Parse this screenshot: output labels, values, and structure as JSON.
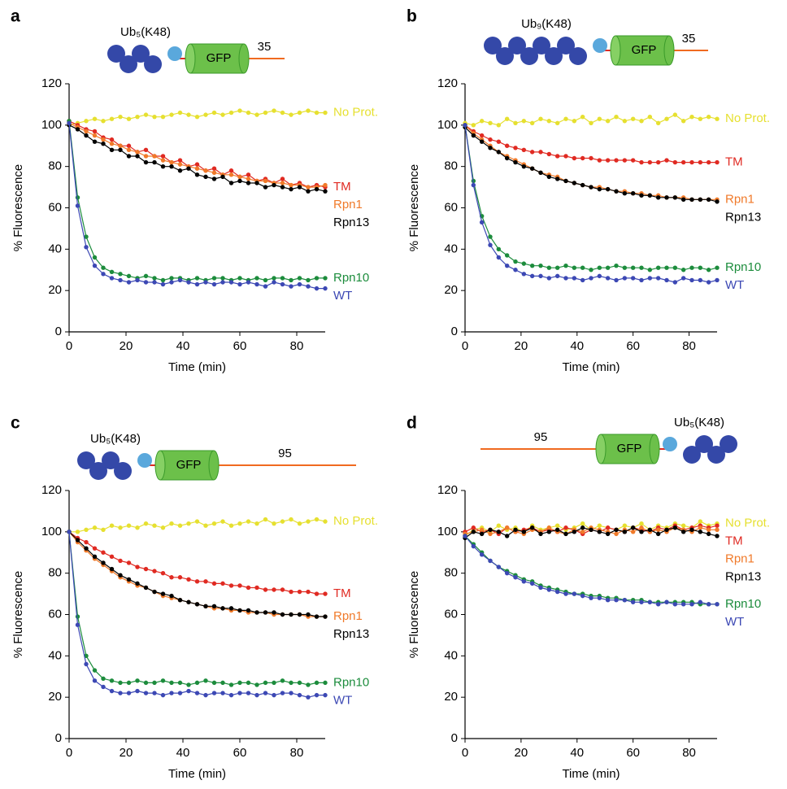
{
  "chart_data": [
    {
      "type": "scatter",
      "panel": "a",
      "construct": {
        "ubiquitin": "Ub₅(K48)",
        "gfp": "GFP",
        "tail": "35"
      },
      "x_label": "Time (min)",
      "y_label": "% Fluorescence",
      "xlim": [
        0,
        90
      ],
      "xticks": [
        0,
        20,
        40,
        60,
        80
      ],
      "ylim": [
        0,
        120
      ],
      "yticks": [
        0,
        20,
        40,
        60,
        80,
        100,
        120
      ],
      "x": [
        0,
        3,
        6,
        9,
        12,
        15,
        18,
        21,
        24,
        27,
        30,
        33,
        36,
        39,
        42,
        45,
        48,
        51,
        54,
        57,
        60,
        63,
        66,
        69,
        72,
        75,
        78,
        81,
        84,
        87,
        90
      ],
      "series": [
        {
          "name": "No Prot.",
          "color": "#e6e030",
          "values": [
            100,
            101,
            102,
            103,
            102,
            103,
            104,
            103,
            104,
            105,
            104,
            104,
            105,
            106,
            105,
            104,
            105,
            106,
            105,
            106,
            107,
            106,
            105,
            106,
            107,
            106,
            105,
            106,
            107,
            106,
            106
          ]
        },
        {
          "name": "TM",
          "color": "#e02a22",
          "values": [
            102,
            100,
            98,
            97,
            94,
            93,
            90,
            90,
            87,
            88,
            85,
            85,
            82,
            83,
            80,
            81,
            78,
            79,
            76,
            78,
            75,
            76,
            73,
            74,
            72,
            74,
            71,
            72,
            70,
            71,
            70
          ]
        },
        {
          "name": "Rpn1",
          "color": "#f07a2a",
          "values": [
            101,
            99,
            97,
            95,
            93,
            91,
            90,
            88,
            87,
            85,
            85,
            83,
            82,
            81,
            80,
            79,
            78,
            77,
            76,
            76,
            75,
            74,
            73,
            73,
            72,
            72,
            71,
            71,
            70,
            70,
            71
          ]
        },
        {
          "name": "Rpn13",
          "color": "#000000",
          "values": [
            100,
            98,
            95,
            92,
            91,
            88,
            88,
            85,
            85,
            82,
            82,
            80,
            80,
            78,
            79,
            76,
            75,
            74,
            75,
            72,
            73,
            72,
            72,
            70,
            71,
            70,
            69,
            70,
            68,
            69,
            68
          ]
        },
        {
          "name": "Rpn10",
          "color": "#1c8c3c",
          "values": [
            102,
            65,
            46,
            36,
            31,
            29,
            28,
            27,
            26,
            27,
            26,
            25,
            26,
            26,
            25,
            26,
            25,
            26,
            26,
            25,
            26,
            25,
            26,
            25,
            26,
            26,
            25,
            26,
            25,
            26,
            26
          ]
        },
        {
          "name": "WT",
          "color": "#3c48b4",
          "values": [
            101,
            61,
            41,
            32,
            28,
            26,
            25,
            24,
            25,
            24,
            24,
            23,
            24,
            25,
            24,
            23,
            24,
            23,
            24,
            24,
            23,
            24,
            23,
            22,
            24,
            23,
            22,
            23,
            22,
            21,
            21
          ]
        }
      ]
    },
    {
      "type": "scatter",
      "panel": "b",
      "construct": {
        "ubiquitin": "Ub₉(K48)",
        "gfp": "GFP",
        "tail": "35"
      },
      "x_label": "Time (min)",
      "y_label": "% Fluorescence",
      "xlim": [
        0,
        90
      ],
      "xticks": [
        0,
        20,
        40,
        60,
        80
      ],
      "ylim": [
        0,
        120
      ],
      "yticks": [
        0,
        20,
        40,
        60,
        80,
        100,
        120
      ],
      "x": [
        0,
        3,
        6,
        9,
        12,
        15,
        18,
        21,
        24,
        27,
        30,
        33,
        36,
        39,
        42,
        45,
        48,
        51,
        54,
        57,
        60,
        63,
        66,
        69,
        72,
        75,
        78,
        81,
        84,
        87,
        90
      ],
      "series": [
        {
          "name": "No Prot.",
          "color": "#e6e030",
          "values": [
            101,
            100,
            102,
            101,
            100,
            103,
            101,
            102,
            101,
            103,
            102,
            101,
            103,
            102,
            104,
            101,
            103,
            102,
            104,
            102,
            103,
            102,
            104,
            101,
            103,
            105,
            102,
            104,
            103,
            104,
            103
          ]
        },
        {
          "name": "TM",
          "color": "#e02a22",
          "values": [
            100,
            97,
            95,
            93,
            92,
            90,
            89,
            88,
            87,
            87,
            86,
            85,
            85,
            84,
            84,
            84,
            83,
            83,
            83,
            83,
            83,
            82,
            82,
            82,
            83,
            82,
            82,
            82,
            82,
            82,
            82
          ]
        },
        {
          "name": "Rpn1",
          "color": "#f07a2a",
          "values": [
            100,
            96,
            93,
            90,
            87,
            85,
            83,
            81,
            79,
            77,
            76,
            75,
            73,
            72,
            71,
            70,
            70,
            69,
            68,
            68,
            67,
            67,
            66,
            66,
            65,
            65,
            65,
            64,
            64,
            64,
            64
          ]
        },
        {
          "name": "Rpn13",
          "color": "#000000",
          "values": [
            99,
            95,
            92,
            89,
            87,
            84,
            82,
            80,
            79,
            77,
            75,
            74,
            73,
            72,
            71,
            70,
            69,
            69,
            68,
            67,
            67,
            66,
            66,
            65,
            65,
            65,
            64,
            64,
            64,
            64,
            63
          ]
        },
        {
          "name": "Rpn10",
          "color": "#1c8c3c",
          "values": [
            100,
            73,
            56,
            46,
            40,
            37,
            34,
            33,
            32,
            32,
            31,
            31,
            32,
            31,
            31,
            30,
            31,
            31,
            32,
            31,
            31,
            31,
            30,
            31,
            31,
            31,
            30,
            31,
            31,
            30,
            31
          ]
        },
        {
          "name": "WT",
          "color": "#3c48b4",
          "values": [
            100,
            71,
            53,
            42,
            36,
            32,
            30,
            28,
            27,
            27,
            26,
            27,
            26,
            26,
            25,
            26,
            27,
            26,
            25,
            26,
            26,
            25,
            26,
            26,
            25,
            24,
            26,
            25,
            25,
            24,
            25
          ]
        }
      ]
    },
    {
      "type": "scatter",
      "panel": "c",
      "construct": {
        "ubiquitin": "Ub₅(K48)",
        "gfp": "GFP",
        "tail": "95"
      },
      "x_label": "Time (min)",
      "y_label": "% Fluorescence",
      "xlim": [
        0,
        90
      ],
      "xticks": [
        0,
        20,
        40,
        60,
        80
      ],
      "ylim": [
        0,
        120
      ],
      "yticks": [
        0,
        20,
        40,
        60,
        80,
        100,
        120
      ],
      "x": [
        0,
        3,
        6,
        9,
        12,
        15,
        18,
        21,
        24,
        27,
        30,
        33,
        36,
        39,
        42,
        45,
        48,
        51,
        54,
        57,
        60,
        63,
        66,
        69,
        72,
        75,
        78,
        81,
        84,
        87,
        90
      ],
      "series": [
        {
          "name": "No Prot.",
          "color": "#e6e030",
          "values": [
            100,
            100,
            101,
            102,
            101,
            103,
            102,
            103,
            102,
            104,
            103,
            102,
            104,
            103,
            104,
            105,
            103,
            104,
            105,
            103,
            104,
            105,
            104,
            106,
            104,
            105,
            106,
            104,
            105,
            106,
            105
          ]
        },
        {
          "name": "TM",
          "color": "#e02a22",
          "values": [
            100,
            97,
            95,
            92,
            90,
            88,
            86,
            85,
            83,
            82,
            81,
            80,
            78,
            78,
            77,
            76,
            76,
            75,
            75,
            74,
            74,
            73,
            73,
            72,
            72,
            72,
            71,
            71,
            71,
            70,
            70
          ]
        },
        {
          "name": "Rpn1",
          "color": "#f07a2a",
          "values": [
            100,
            95,
            91,
            87,
            84,
            81,
            78,
            76,
            74,
            73,
            71,
            69,
            68,
            67,
            66,
            65,
            64,
            63,
            63,
            62,
            62,
            61,
            61,
            61,
            60,
            60,
            60,
            60,
            59,
            59,
            59
          ]
        },
        {
          "name": "Rpn13",
          "color": "#000000",
          "values": [
            100,
            96,
            92,
            88,
            85,
            82,
            79,
            77,
            75,
            73,
            71,
            70,
            69,
            67,
            66,
            65,
            64,
            64,
            63,
            63,
            62,
            62,
            61,
            61,
            61,
            60,
            60,
            60,
            60,
            59,
            59
          ]
        },
        {
          "name": "Rpn10",
          "color": "#1c8c3c",
          "values": [
            100,
            59,
            40,
            33,
            29,
            28,
            27,
            27,
            28,
            27,
            27,
            28,
            27,
            27,
            26,
            27,
            28,
            27,
            27,
            26,
            27,
            27,
            26,
            27,
            27,
            28,
            27,
            27,
            26,
            27,
            27
          ]
        },
        {
          "name": "WT",
          "color": "#3c48b4",
          "values": [
            100,
            55,
            36,
            28,
            25,
            23,
            22,
            22,
            23,
            22,
            22,
            21,
            22,
            22,
            23,
            22,
            21,
            22,
            22,
            21,
            22,
            22,
            21,
            22,
            21,
            22,
            22,
            21,
            20,
            21,
            21
          ]
        }
      ]
    },
    {
      "type": "scatter",
      "panel": "d",
      "construct": {
        "ubiquitin": "Ub₅(K48)",
        "gfp": "GFP",
        "tail": "95"
      },
      "x_label": "Time (min)",
      "y_label": "% Fluorescence",
      "xlim": [
        0,
        90
      ],
      "xticks": [
        0,
        20,
        40,
        60,
        80
      ],
      "ylim": [
        0,
        120
      ],
      "yticks": [
        0,
        20,
        40,
        60,
        80,
        100,
        120
      ],
      "x": [
        0,
        3,
        6,
        9,
        12,
        15,
        18,
        21,
        24,
        27,
        30,
        33,
        36,
        39,
        42,
        45,
        48,
        51,
        54,
        57,
        60,
        63,
        66,
        69,
        72,
        75,
        78,
        81,
        84,
        87,
        90
      ],
      "series": [
        {
          "name": "No Prot.",
          "color": "#e6e030",
          "values": [
            98,
            101,
            102,
            100,
            103,
            101,
            102,
            100,
            103,
            101,
            102,
            103,
            101,
            102,
            104,
            101,
            103,
            102,
            101,
            103,
            102,
            104,
            101,
            103,
            102,
            104,
            103,
            102,
            105,
            103,
            104
          ]
        },
        {
          "name": "TM",
          "color": "#e02a22",
          "values": [
            100,
            102,
            100,
            101,
            99,
            102,
            100,
            101,
            102,
            100,
            101,
            100,
            102,
            101,
            99,
            101,
            100,
            102,
            101,
            100,
            102,
            101,
            100,
            102,
            101,
            103,
            101,
            102,
            103,
            102,
            103
          ]
        },
        {
          "name": "Rpn1",
          "color": "#f07a2a",
          "values": [
            99,
            100,
            101,
            99,
            100,
            102,
            100,
            99,
            101,
            100,
            102,
            100,
            99,
            101,
            100,
            102,
            101,
            100,
            99,
            101,
            100,
            102,
            100,
            101,
            100,
            102,
            101,
            100,
            102,
            101,
            101
          ]
        },
        {
          "name": "Rpn13",
          "color": "#000000",
          "values": [
            97,
            100,
            99,
            101,
            100,
            98,
            101,
            100,
            102,
            99,
            100,
            101,
            99,
            100,
            102,
            101,
            100,
            99,
            101,
            100,
            102,
            100,
            101,
            99,
            101,
            102,
            100,
            101,
            100,
            99,
            98
          ]
        },
        {
          "name": "Rpn10",
          "color": "#1c8c3c",
          "values": [
            98,
            94,
            90,
            86,
            83,
            81,
            79,
            77,
            76,
            74,
            73,
            72,
            71,
            70,
            70,
            69,
            69,
            68,
            68,
            67,
            67,
            67,
            66,
            66,
            66,
            66,
            66,
            66,
            65,
            65,
            65
          ]
        },
        {
          "name": "WT",
          "color": "#3c48b4",
          "values": [
            98,
            93,
            89,
            86,
            83,
            80,
            78,
            76,
            75,
            73,
            72,
            71,
            70,
            70,
            69,
            68,
            68,
            67,
            67,
            67,
            66,
            66,
            66,
            65,
            66,
            65,
            65,
            65,
            66,
            65,
            65
          ]
        }
      ]
    }
  ]
}
